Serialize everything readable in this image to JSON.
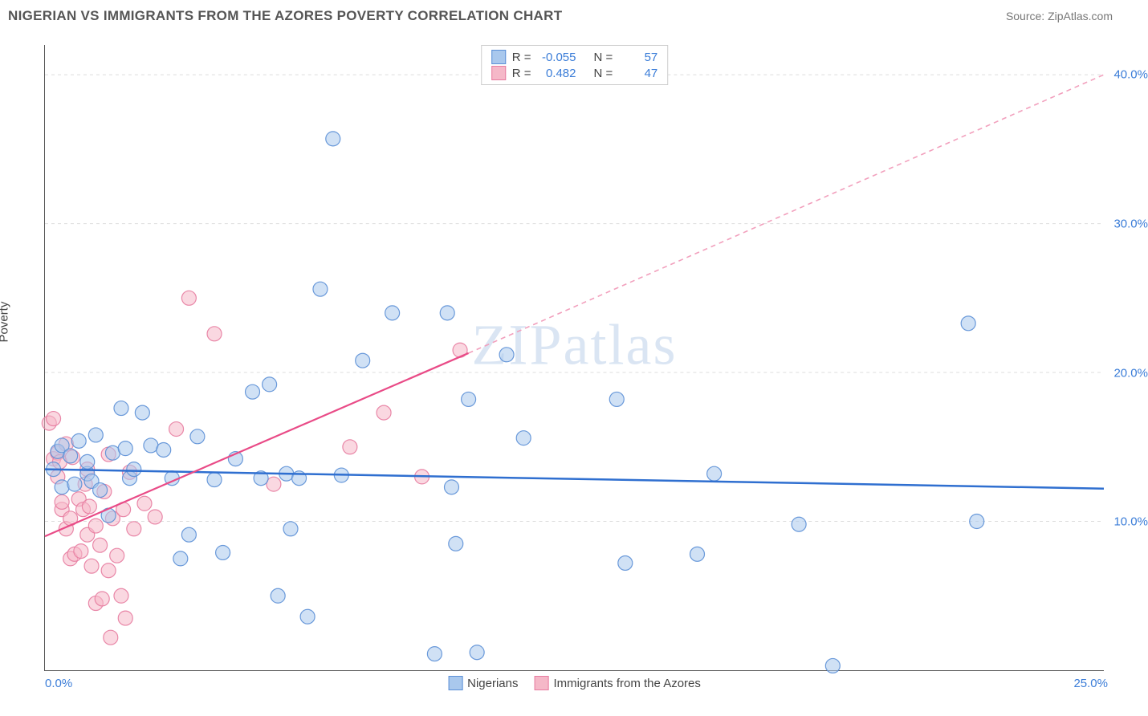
{
  "header": {
    "title": "NIGERIAN VS IMMIGRANTS FROM THE AZORES POVERTY CORRELATION CHART",
    "source": "Source: ZipAtlas.com"
  },
  "chart": {
    "type": "scatter",
    "ylabel": "Poverty",
    "xlim": [
      0,
      25
    ],
    "ylim": [
      0,
      42
    ],
    "x_ticks": [
      {
        "v": 0,
        "label": "0.0%"
      },
      {
        "v": 25,
        "label": "25.0%"
      }
    ],
    "y_ticks": [
      {
        "v": 10,
        "label": "10.0%"
      },
      {
        "v": 20,
        "label": "20.0%"
      },
      {
        "v": 30,
        "label": "30.0%"
      },
      {
        "v": 40,
        "label": "40.0%"
      }
    ],
    "grid_color": "#dddddd",
    "background_color": "#ffffff",
    "axis_color": "#555555",
    "watermark": "ZIPatlas",
    "marker_radius": 9,
    "marker_opacity": 0.55,
    "marker_stroke_opacity": 0.9,
    "series": [
      {
        "name": "Nigerians",
        "color_fill": "#a9c8ed",
        "color_stroke": "#5b8fd6",
        "R": "-0.055",
        "N": "57",
        "regression": {
          "x0": 0,
          "y0": 13.5,
          "x1": 25,
          "y1": 12.2,
          "color": "#2f6fd0",
          "width": 2.5,
          "solid": true
        },
        "points": [
          [
            0.2,
            13.5
          ],
          [
            0.3,
            14.7
          ],
          [
            0.4,
            15.1
          ],
          [
            0.4,
            12.3
          ],
          [
            0.6,
            14.4
          ],
          [
            0.7,
            12.5
          ],
          [
            0.8,
            15.4
          ],
          [
            1.0,
            13.2
          ],
          [
            1.0,
            14.0
          ],
          [
            1.1,
            12.7
          ],
          [
            1.2,
            15.8
          ],
          [
            1.3,
            12.1
          ],
          [
            1.5,
            10.4
          ],
          [
            1.6,
            14.6
          ],
          [
            1.8,
            17.6
          ],
          [
            1.9,
            14.9
          ],
          [
            2.0,
            12.9
          ],
          [
            2.1,
            13.5
          ],
          [
            2.3,
            17.3
          ],
          [
            2.5,
            15.1
          ],
          [
            2.8,
            14.8
          ],
          [
            3.0,
            12.9
          ],
          [
            3.2,
            7.5
          ],
          [
            3.4,
            9.1
          ],
          [
            3.6,
            15.7
          ],
          [
            4.0,
            12.8
          ],
          [
            4.2,
            7.9
          ],
          [
            4.5,
            14.2
          ],
          [
            4.9,
            18.7
          ],
          [
            5.1,
            12.9
          ],
          [
            5.3,
            19.2
          ],
          [
            5.5,
            5.0
          ],
          [
            5.7,
            13.2
          ],
          [
            5.8,
            9.5
          ],
          [
            6.0,
            12.9
          ],
          [
            6.2,
            3.6
          ],
          [
            6.5,
            25.6
          ],
          [
            6.8,
            35.7
          ],
          [
            7.0,
            13.1
          ],
          [
            7.5,
            20.8
          ],
          [
            8.2,
            24.0
          ],
          [
            9.2,
            1.1
          ],
          [
            9.5,
            24.0
          ],
          [
            9.6,
            12.3
          ],
          [
            9.7,
            8.5
          ],
          [
            10.0,
            18.2
          ],
          [
            10.2,
            1.2
          ],
          [
            10.9,
            21.2
          ],
          [
            11.3,
            15.6
          ],
          [
            13.5,
            18.2
          ],
          [
            13.7,
            7.2
          ],
          [
            15.4,
            7.8
          ],
          [
            15.8,
            13.2
          ],
          [
            17.8,
            9.8
          ],
          [
            18.6,
            0.3
          ],
          [
            21.8,
            23.3
          ],
          [
            22.0,
            10.0
          ]
        ]
      },
      {
        "name": "Immigrants from the Azores",
        "color_fill": "#f5b8c8",
        "color_stroke": "#e77ca0",
        "R": "0.482",
        "N": "47",
        "regression_solid": {
          "x0": 0,
          "y0": 9.0,
          "x1": 10,
          "y1": 21.3,
          "color": "#e94b87",
          "width": 2.2
        },
        "regression_dashed": {
          "x0": 10,
          "y0": 21.3,
          "x1": 25,
          "y1": 40.0,
          "color": "#f2a0bd",
          "width": 1.6,
          "dash": "6,5"
        },
        "points": [
          [
            0.1,
            16.6
          ],
          [
            0.2,
            16.9
          ],
          [
            0.2,
            14.2
          ],
          [
            0.3,
            13.0
          ],
          [
            0.3,
            14.6
          ],
          [
            0.35,
            14.0
          ],
          [
            0.4,
            10.8
          ],
          [
            0.4,
            11.3
          ],
          [
            0.5,
            15.2
          ],
          [
            0.5,
            9.5
          ],
          [
            0.6,
            10.2
          ],
          [
            0.6,
            7.5
          ],
          [
            0.65,
            14.3
          ],
          [
            0.7,
            7.8
          ],
          [
            0.8,
            11.5
          ],
          [
            0.85,
            8.0
          ],
          [
            0.9,
            10.8
          ],
          [
            0.95,
            12.5
          ],
          [
            1.0,
            9.1
          ],
          [
            1.0,
            13.5
          ],
          [
            1.05,
            11.0
          ],
          [
            1.1,
            7.0
          ],
          [
            1.2,
            9.7
          ],
          [
            1.2,
            4.5
          ],
          [
            1.3,
            8.4
          ],
          [
            1.35,
            4.8
          ],
          [
            1.4,
            12.0
          ],
          [
            1.5,
            6.7
          ],
          [
            1.5,
            14.5
          ],
          [
            1.55,
            2.2
          ],
          [
            1.6,
            10.2
          ],
          [
            1.7,
            7.7
          ],
          [
            1.8,
            5.0
          ],
          [
            1.85,
            10.8
          ],
          [
            1.9,
            3.5
          ],
          [
            2.0,
            13.3
          ],
          [
            2.1,
            9.5
          ],
          [
            2.35,
            11.2
          ],
          [
            2.6,
            10.3
          ],
          [
            3.1,
            16.2
          ],
          [
            3.4,
            25.0
          ],
          [
            4.0,
            22.6
          ],
          [
            5.4,
            12.5
          ],
          [
            7.2,
            15.0
          ],
          [
            8.0,
            17.3
          ],
          [
            8.9,
            13.0
          ],
          [
            9.8,
            21.5
          ]
        ]
      }
    ],
    "legend_labels": {
      "R": "R =",
      "N": "N ="
    }
  }
}
